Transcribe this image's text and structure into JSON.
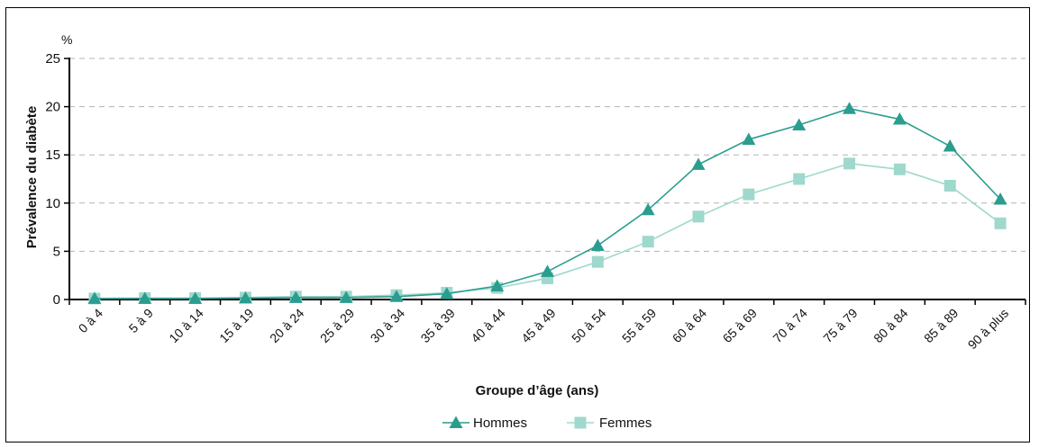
{
  "chart_data": {
    "type": "line",
    "unit_label": "%",
    "ylabel": "Prévalence du diabète",
    "xlabel": "Groupe d’âge (ans)",
    "ylim": [
      0,
      25
    ],
    "yticks": [
      0,
      5,
      10,
      15,
      20,
      25
    ],
    "grid": "horizontal dashed",
    "legend_position": "bottom-center",
    "categories": [
      "0 à 4",
      "5 à 9",
      "10 à 14",
      "15 à 19",
      "20 à 24",
      "25 à 29",
      "30 à 34",
      "35 à 39",
      "40 à 44",
      "45 à 49",
      "50 à 54",
      "55 à 59",
      "60 à 64",
      "65 à 69",
      "70 à 74",
      "75 à 79",
      "80 à 84",
      "85 à 89",
      "90 à plus"
    ],
    "series": [
      {
        "name": "Hommes",
        "marker": "triangle",
        "color": "#2a9d8f",
        "values": [
          0.1,
          0.1,
          0.1,
          0.15,
          0.2,
          0.2,
          0.3,
          0.6,
          1.4,
          2.9,
          5.6,
          9.3,
          14.0,
          16.6,
          18.1,
          19.8,
          18.7,
          15.9,
          10.4
        ]
      },
      {
        "name": "Femmes",
        "marker": "square",
        "color": "#9fd8cc",
        "values": [
          0.1,
          0.15,
          0.15,
          0.2,
          0.3,
          0.3,
          0.45,
          0.7,
          1.2,
          2.2,
          3.9,
          6.0,
          8.6,
          10.9,
          12.5,
          14.1,
          13.5,
          11.8,
          7.9
        ]
      }
    ]
  }
}
